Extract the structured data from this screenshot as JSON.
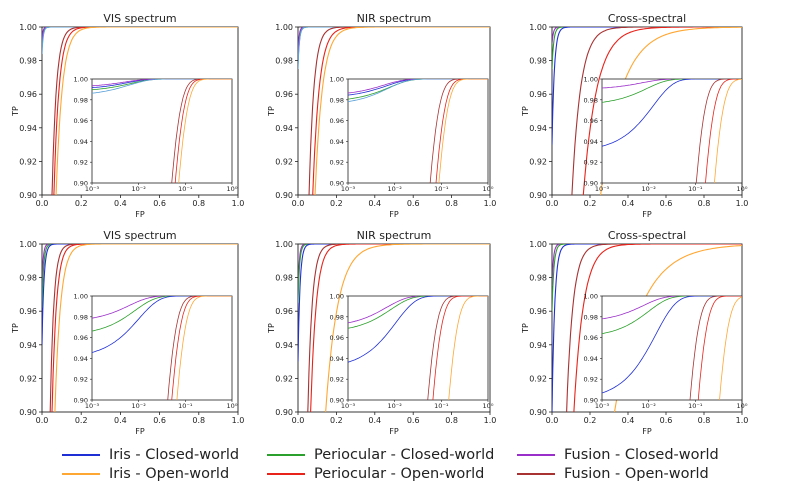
{
  "colors": {
    "iris_closed": "#1f2fd6",
    "iris_open": "#ffa733",
    "periocular_closed": "#2ca02c",
    "periocular_open": "#e8231a",
    "fusion_closed": "#9b2fc9",
    "fusion_open": "#a83232",
    "periocular_closed_alt": "#5aa0d8"
  },
  "legend": [
    {
      "key": "iris_closed",
      "label": "Iris - Closed-world"
    },
    {
      "key": "periocular_closed",
      "label": "Periocular - Closed-world"
    },
    {
      "key": "fusion_closed",
      "label": "Fusion - Closed-world"
    },
    {
      "key": "iris_open",
      "label": "Iris - Open-world"
    },
    {
      "key": "periocular_open",
      "label": "Periocular - Open-world"
    },
    {
      "key": "fusion_open",
      "label": "Fusion - Open-world"
    }
  ],
  "chart_data": [
    {
      "id": "r1c1",
      "type": "line",
      "title": "VIS spectrum",
      "xlabel": "FP",
      "ylabel": "TP",
      "xlim": [
        0,
        1
      ],
      "ylim": [
        0.9,
        1.0
      ],
      "xticks": [
        "0.0",
        "0.2",
        "0.4",
        "0.6",
        "0.8",
        "1.0"
      ],
      "yticks": [
        "0.90",
        "0.92",
        "0.94",
        "0.96",
        "0.98",
        "1.00"
      ],
      "inset": {
        "xscale": "log",
        "xlim": [
          0.001,
          1
        ],
        "ylim": [
          0.9,
          1.0
        ],
        "xticks": [
          "10⁻³",
          "10⁻²",
          "10⁻¹",
          "10⁰"
        ],
        "yticks": [
          "0.90",
          "0.92",
          "0.94",
          "0.96",
          "0.98",
          "1.00"
        ]
      },
      "series": [
        {
          "key": "iris_closed",
          "k": 180,
          "a": 0.99
        },
        {
          "key": "periocular_closed",
          "k": 150,
          "a": 0.988
        },
        {
          "key": "fusion_closed",
          "k": 200,
          "a": 0.992
        },
        {
          "key": "periocular_closed_alt",
          "k": 160,
          "a": 0.984
        },
        {
          "key": "fusion_open",
          "k": 45,
          "a": 0.0
        },
        {
          "key": "periocular_open",
          "k": 38,
          "a": 0.0
        },
        {
          "key": "iris_open",
          "k": 32,
          "a": 0.0
        }
      ]
    },
    {
      "id": "r1c2",
      "type": "line",
      "title": "NIR spectrum",
      "xlabel": "FP",
      "ylabel": "TP",
      "xlim": [
        0,
        1
      ],
      "ylim": [
        0.9,
        1.0
      ],
      "xticks": [
        "0.0",
        "0.2",
        "0.4",
        "0.6",
        "0.8",
        "1.0"
      ],
      "yticks": [
        "0.90",
        "0.92",
        "0.94",
        "0.96",
        "0.98",
        "1.00"
      ],
      "inset": {
        "xscale": "log",
        "xlim": [
          0.001,
          1
        ],
        "ylim": [
          0.9,
          1.0
        ],
        "xticks": [
          "10⁻³",
          "10⁻²",
          "10⁻¹",
          "10⁰"
        ],
        "yticks": [
          "0.90",
          "0.92",
          "0.94",
          "0.96",
          "0.98",
          "1.00"
        ]
      },
      "series": [
        {
          "key": "iris_closed",
          "k": 150,
          "a": 0.982
        },
        {
          "key": "periocular_closed",
          "k": 130,
          "a": 0.978
        },
        {
          "key": "fusion_closed",
          "k": 170,
          "a": 0.984
        },
        {
          "key": "periocular_closed_alt",
          "k": 140,
          "a": 0.975
        },
        {
          "key": "fusion_open",
          "k": 40,
          "a": 0.0
        },
        {
          "key": "periocular_open",
          "k": 30,
          "a": 0.0
        },
        {
          "key": "iris_open",
          "k": 26,
          "a": 0.0
        }
      ]
    },
    {
      "id": "r1c3",
      "type": "line",
      "title": "Cross-spectral",
      "xlabel": "FP",
      "ylabel": "TP",
      "xlim": [
        0,
        1
      ],
      "ylim": [
        0.9,
        1.0
      ],
      "xticks": [
        "0.0",
        "0.2",
        "0.4",
        "0.6",
        "0.8",
        "1.0"
      ],
      "yticks": [
        "0.90",
        "0.92",
        "0.94",
        "0.96",
        "0.98",
        "1.00"
      ],
      "inset": {
        "xscale": "log",
        "xlim": [
          0.001,
          1
        ],
        "ylim": [
          0.9,
          1.0
        ],
        "xticks": [
          "10⁻³",
          "10⁻²",
          "10⁻¹",
          "10⁰"
        ],
        "yticks": [
          "0.90",
          "0.92",
          "0.94",
          "0.96",
          "0.98",
          "1.00"
        ]
      },
      "series": [
        {
          "key": "fusion_closed",
          "k": 140,
          "a": 0.99
        },
        {
          "key": "periocular_closed",
          "k": 110,
          "a": 0.975
        },
        {
          "key": "iris_closed",
          "k": 80,
          "a": 0.93
        },
        {
          "key": "fusion_open",
          "k": 22,
          "a": 0.0
        },
        {
          "key": "periocular_open",
          "k": 14,
          "a": 0.0
        },
        {
          "key": "iris_open",
          "k": 9,
          "a": 0.0
        }
      ]
    },
    {
      "id": "r2c1",
      "type": "line",
      "title": "VIS spectrum",
      "xlabel": "FP",
      "ylabel": "TP",
      "xlim": [
        0,
        1
      ],
      "ylim": [
        0.9,
        1.0
      ],
      "xticks": [
        "0.0",
        "0.2",
        "0.4",
        "0.6",
        "0.8",
        "1.0"
      ],
      "yticks": [
        "0.90",
        "0.92",
        "0.94",
        "0.96",
        "0.98",
        "1.00"
      ],
      "inset": {
        "xscale": "log",
        "xlim": [
          0.001,
          1
        ],
        "ylim": [
          0.9,
          1.0
        ],
        "xticks": [
          "10⁻³",
          "10⁻²",
          "10⁻¹",
          "10⁰"
        ],
        "yticks": [
          "0.90",
          "0.92",
          "0.94",
          "0.96",
          "0.98",
          "1.00"
        ]
      },
      "series": [
        {
          "key": "fusion_closed",
          "k": 160,
          "a": 0.975
        },
        {
          "key": "periocular_closed",
          "k": 120,
          "a": 0.962
        },
        {
          "key": "iris_closed",
          "k": 100,
          "a": 0.94
        },
        {
          "key": "fusion_open",
          "k": 55,
          "a": 0.0
        },
        {
          "key": "periocular_open",
          "k": 45,
          "a": 0.0
        },
        {
          "key": "iris_open",
          "k": 35,
          "a": 0.0
        }
      ]
    },
    {
      "id": "r2c2",
      "type": "line",
      "title": "NIR spectrum",
      "xlabel": "FP",
      "ylabel": "TP",
      "xlim": [
        0,
        1
      ],
      "ylim": [
        0.9,
        1.0
      ],
      "xticks": [
        "0.0",
        "0.2",
        "0.4",
        "0.6",
        "0.8",
        "1.0"
      ],
      "yticks": [
        "0.90",
        "0.92",
        "0.94",
        "0.96",
        "0.98",
        "1.00"
      ],
      "inset": {
        "xscale": "log",
        "xlim": [
          0.001,
          1
        ],
        "ylim": [
          0.9,
          1.0
        ],
        "xticks": [
          "10⁻³",
          "10⁻²",
          "10⁻¹",
          "10⁰"
        ],
        "yticks": [
          "0.90",
          "0.92",
          "0.94",
          "0.96",
          "0.98",
          "1.00"
        ]
      },
      "series": [
        {
          "key": "fusion_closed",
          "k": 150,
          "a": 0.97
        },
        {
          "key": "periocular_closed",
          "k": 120,
          "a": 0.965
        },
        {
          "key": "iris_closed",
          "k": 95,
          "a": 0.93
        },
        {
          "key": "fusion_open",
          "k": 45,
          "a": 0.0
        },
        {
          "key": "periocular_open",
          "k": 35,
          "a": 0.0
        },
        {
          "key": "iris_open",
          "k": 16,
          "a": 0.0
        }
      ]
    },
    {
      "id": "r2c3",
      "type": "line",
      "title": "Cross-spectral",
      "xlabel": "FP",
      "ylabel": "TP",
      "xlim": [
        0,
        1
      ],
      "ylim": [
        0.9,
        1.0
      ],
      "xticks": [
        "0.0",
        "0.2",
        "0.4",
        "0.6",
        "0.8",
        "1.0"
      ],
      "yticks": [
        "0.90",
        "0.92",
        "0.94",
        "0.96",
        "0.98",
        "1.00"
      ],
      "inset": {
        "xscale": "log",
        "xlim": [
          0.001,
          1
        ],
        "ylim": [
          0.9,
          1.0
        ],
        "xticks": [
          "10⁻³",
          "10⁻²",
          "10⁻¹",
          "10⁰"
        ],
        "yticks": [
          "0.90",
          "0.92",
          "0.94",
          "0.96",
          "0.98",
          "1.00"
        ]
      },
      "series": [
        {
          "key": "fusion_closed",
          "k": 130,
          "a": 0.975
        },
        {
          "key": "periocular_closed",
          "k": 100,
          "a": 0.96
        },
        {
          "key": "iris_closed",
          "k": 70,
          "a": 0.9
        },
        {
          "key": "fusion_open",
          "k": 30,
          "a": 0.0
        },
        {
          "key": "periocular_open",
          "k": 20,
          "a": 0.0
        },
        {
          "key": "iris_open",
          "k": 7,
          "a": 0.0
        }
      ]
    }
  ]
}
